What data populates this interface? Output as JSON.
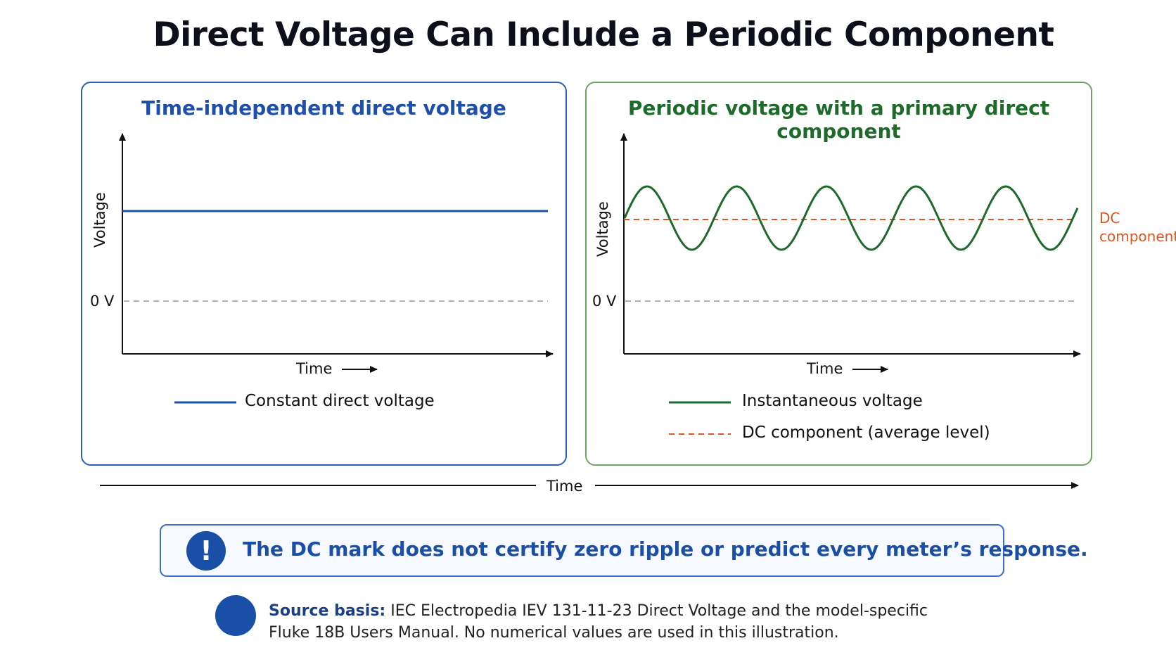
{
  "title": "Direct Voltage Can Include a Periodic Component",
  "left_panel": {
    "title": "Time-independent direct voltage",
    "ylabel": "Voltage",
    "zero_label": "0 V",
    "xlabel": "Time",
    "legend": [
      {
        "label": "Constant direct voltage",
        "style": "solid",
        "color": "#1f4fa8"
      }
    ]
  },
  "right_panel": {
    "title": "Periodic voltage with a primary direct component",
    "ylabel": "Voltage",
    "zero_label": "0 V",
    "xlabel": "Time",
    "dc_label_line1": "DC",
    "dc_label_line2": "component",
    "legend": [
      {
        "label": "Instantaneous voltage",
        "style": "solid",
        "color": "#1e6a2b"
      },
      {
        "label": "DC component (average level)",
        "style": "dashed",
        "color": "#e0541f"
      }
    ]
  },
  "timeline_label": "Time",
  "notice": {
    "icon": "exclamation-icon",
    "text": "The DC mark does not certify zero ripple or predict every meter’s response."
  },
  "source": {
    "icon": "book-icon",
    "label": "Source basis:",
    "line1": " IEC Electropedia IEV 131-11-23 Direct Voltage and the model-specific",
    "line2": "Fluke 18B Users Manual. No numerical values are used in this illustration."
  },
  "colors": {
    "blue": "#1f4fa8",
    "green": "#1e6a2b",
    "orange": "#e0541f"
  }
}
